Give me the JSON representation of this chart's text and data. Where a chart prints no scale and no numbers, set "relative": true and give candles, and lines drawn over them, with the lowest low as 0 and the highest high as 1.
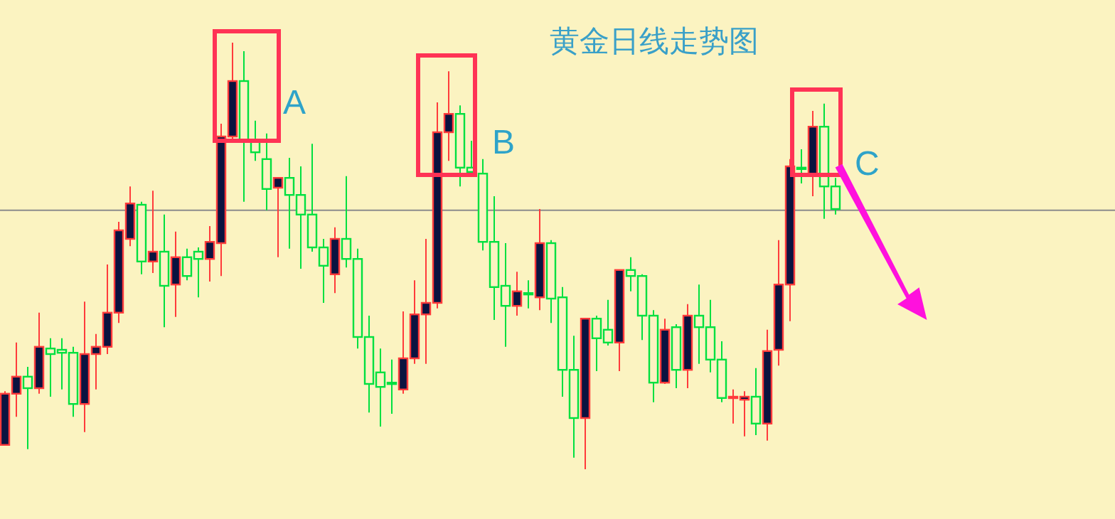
{
  "chart_data": {
    "type": "candlestick",
    "title": "黄金日线走势图",
    "relative": true,
    "categories": [
      null,
      null,
      null,
      null,
      null,
      null,
      null,
      null,
      null,
      null,
      null,
      null,
      null,
      null,
      null,
      null,
      null,
      null,
      null,
      null,
      null,
      null,
      null,
      null,
      null,
      null,
      null,
      null,
      null,
      null,
      null,
      null,
      null,
      null,
      null,
      null,
      null,
      null,
      null,
      null,
      null,
      null,
      null,
      null,
      null,
      null,
      null,
      null,
      null,
      null,
      null,
      null,
      null,
      null,
      null,
      null,
      null,
      null,
      null,
      null,
      null,
      null,
      null,
      null,
      null,
      null,
      null,
      null,
      null,
      null,
      null,
      null,
      null,
      null
    ],
    "ohlc": [
      [
        0.057,
        0.183,
        0.057,
        0.177
      ],
      [
        0.177,
        0.297,
        0.123,
        0.217
      ],
      [
        0.217,
        0.24,
        0.047,
        0.19
      ],
      [
        0.19,
        0.367,
        0.177,
        0.287
      ],
      [
        0.283,
        0.307,
        0.17,
        0.27
      ],
      [
        0.28,
        0.307,
        0.187,
        0.273
      ],
      [
        0.273,
        0.287,
        0.123,
        0.153
      ],
      [
        0.153,
        0.393,
        0.087,
        0.27
      ],
      [
        0.27,
        0.317,
        0.187,
        0.287
      ],
      [
        0.287,
        0.48,
        0.27,
        0.367
      ],
      [
        0.367,
        0.58,
        0.343,
        0.56
      ],
      [
        0.54,
        0.663,
        0.523,
        0.623
      ],
      [
        0.62,
        0.627,
        0.457,
        0.487
      ],
      [
        0.487,
        0.653,
        0.46,
        0.51
      ],
      [
        0.51,
        0.597,
        0.333,
        0.43
      ],
      [
        0.433,
        0.557,
        0.357,
        0.497
      ],
      [
        0.497,
        0.517,
        0.443,
        0.453
      ],
      [
        0.51,
        0.52,
        0.403,
        0.493
      ],
      [
        0.493,
        0.57,
        0.44,
        0.533
      ],
      [
        0.53,
        0.81,
        0.453,
        0.78
      ],
      [
        0.78,
        1.0,
        0.773,
        0.91
      ],
      [
        0.91,
        0.98,
        0.627,
        0.773
      ],
      [
        0.767,
        0.817,
        0.723,
        0.743
      ],
      [
        0.727,
        0.787,
        0.607,
        0.657
      ],
      [
        0.66,
        0.683,
        0.497,
        0.683
      ],
      [
        0.683,
        0.73,
        0.517,
        0.643
      ],
      [
        0.643,
        0.71,
        0.47,
        0.597
      ],
      [
        0.597,
        0.763,
        0.51,
        0.52
      ],
      [
        0.52,
        0.54,
        0.39,
        0.477
      ],
      [
        0.457,
        0.567,
        0.413,
        0.54
      ],
      [
        0.54,
        0.687,
        0.473,
        0.493
      ],
      [
        0.493,
        0.517,
        0.283,
        0.31
      ],
      [
        0.31,
        0.36,
        0.133,
        0.2
      ],
      [
        0.227,
        0.283,
        0.1,
        0.193
      ],
      [
        0.203,
        0.257,
        0.13,
        0.203
      ],
      [
        0.187,
        0.37,
        0.177,
        0.26
      ],
      [
        0.26,
        0.443,
        0.247,
        0.363
      ],
      [
        0.363,
        0.54,
        0.247,
        0.39
      ],
      [
        0.39,
        0.86,
        0.377,
        0.79
      ],
      [
        0.79,
        0.933,
        0.723,
        0.833
      ],
      [
        0.833,
        0.853,
        0.663,
        0.707
      ],
      [
        0.707,
        0.77,
        0.693,
        0.697
      ],
      [
        0.693,
        0.727,
        0.513,
        0.533
      ],
      [
        0.533,
        0.64,
        0.35,
        0.427
      ],
      [
        0.43,
        0.53,
        0.287,
        0.383
      ],
      [
        0.383,
        0.463,
        0.36,
        0.417
      ],
      [
        0.413,
        0.443,
        0.377,
        0.413
      ],
      [
        0.403,
        0.61,
        0.373,
        0.53
      ],
      [
        0.53,
        0.537,
        0.343,
        0.4
      ],
      [
        0.403,
        0.427,
        0.17,
        0.233
      ],
      [
        0.233,
        0.313,
        0.027,
        0.12
      ],
      [
        0.12,
        0.353,
        0.0,
        0.353
      ],
      [
        0.353,
        0.36,
        0.23,
        0.307
      ],
      [
        0.327,
        0.397,
        0.29,
        0.297
      ],
      [
        0.297,
        0.467,
        0.23,
        0.467
      ],
      [
        0.467,
        0.497,
        0.417,
        0.453
      ],
      [
        0.453,
        0.457,
        0.303,
        0.36
      ],
      [
        0.36,
        0.373,
        0.157,
        0.203
      ],
      [
        0.203,
        0.353,
        0.2,
        0.327
      ],
      [
        0.333,
        0.34,
        0.19,
        0.233
      ],
      [
        0.233,
        0.387,
        0.19,
        0.36
      ],
      [
        0.36,
        0.433,
        0.247,
        0.333
      ],
      [
        0.333,
        0.397,
        0.227,
        0.257
      ],
      [
        0.257,
        0.3,
        0.157,
        0.167
      ],
      [
        0.167,
        0.187,
        0.107,
        0.17
      ],
      [
        0.163,
        0.183,
        0.077,
        0.17
      ],
      [
        0.17,
        0.237,
        0.08,
        0.107
      ],
      [
        0.107,
        0.327,
        0.067,
        0.277
      ],
      [
        0.28,
        0.537,
        0.243,
        0.433
      ],
      [
        0.433,
        0.727,
        0.347,
        0.71
      ],
      [
        0.707,
        0.75,
        0.67,
        0.707
      ],
      [
        0.693,
        0.84,
        0.64,
        0.803
      ],
      [
        0.803,
        0.857,
        0.587,
        0.663
      ],
      [
        0.663,
        0.683,
        0.597,
        0.61
      ]
    ],
    "colors": [
      "#ff3b3b",
      "#ff3b3b",
      "#00e040",
      "#ff3b3b",
      "#00e040",
      "#00e040",
      "#00e040",
      "#ff3b3b",
      "#ff3b3b",
      "#ff3b3b",
      "#ff3b3b",
      "#ff3b3b",
      "#00e040",
      "#ff3b3b",
      "#00e040",
      "#ff3b3b",
      "#00e040",
      "#00e040",
      "#ff3b3b",
      "#ff3b3b",
      "#ff3b3b",
      "#00e040",
      "#00e040",
      "#00e040",
      "#ff3b3b",
      "#00e040",
      "#00e040",
      "#00e040",
      "#00e040",
      "#ff3b3b",
      "#00e040",
      "#00e040",
      "#00e040",
      "#00e040",
      "#00e040",
      "#ff3b3b",
      "#ff3b3b",
      "#ff3b3b",
      "#ff3b3b",
      "#ff3b3b",
      "#00e040",
      "#00e040",
      "#00e040",
      "#00e040",
      "#00e040",
      "#ff3b3b",
      "#00e040",
      "#ff3b3b",
      "#00e040",
      "#00e040",
      "#00e040",
      "#ff3b3b",
      "#00e040",
      "#00e040",
      "#ff3b3b",
      "#00e040",
      "#00e040",
      "#00e040",
      "#ff3b3b",
      "#00e040",
      "#ff3b3b",
      "#00e040",
      "#00e040",
      "#00e040",
      "#ff3b3b",
      "#ff3b3b",
      "#00e040",
      "#ff3b3b",
      "#ff3b3b",
      "#ff3b3b",
      "#00e040",
      "#ff3b3b",
      "#00e040",
      "#00e040"
    ],
    "ref_lines": [
      {
        "axis": "y",
        "value": 0.607,
        "color": "#8c8c8c"
      }
    ],
    "annotations": [
      "A",
      "B",
      "C"
    ]
  }
}
